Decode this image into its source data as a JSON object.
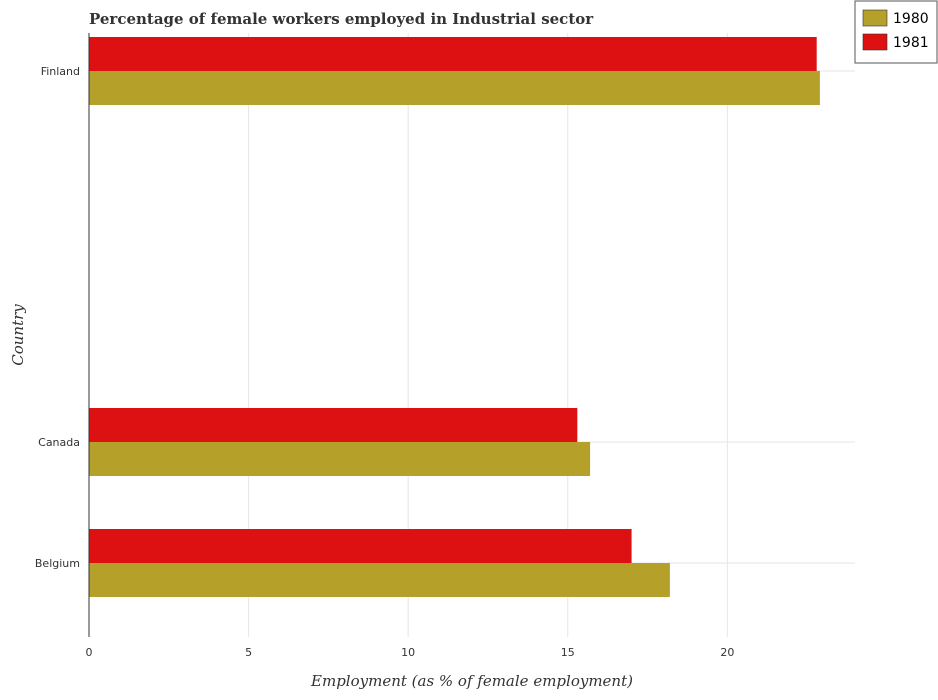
{
  "chart_data": {
    "type": "bar",
    "orientation": "horizontal",
    "title": "Percentage of female workers employed in Industrial sector",
    "xlabel": "Employment (as % of female employment)",
    "ylabel": "Country",
    "categories": [
      "Belgium",
      "Canada",
      "Finland"
    ],
    "series": [
      {
        "name": "1980",
        "values": [
          18.2,
          15.7,
          22.9
        ],
        "color": "#b5a02a"
      },
      {
        "name": "1981",
        "values": [
          17.0,
          15.3,
          22.8
        ],
        "color": "#dd1111"
      }
    ],
    "xlim": [
      0,
      24
    ],
    "xticks": [
      0,
      5,
      10,
      15,
      20
    ],
    "xtick_labels": [
      "0",
      "5",
      "10",
      "15",
      "20"
    ],
    "grid": true,
    "legend_position": "top-right"
  }
}
